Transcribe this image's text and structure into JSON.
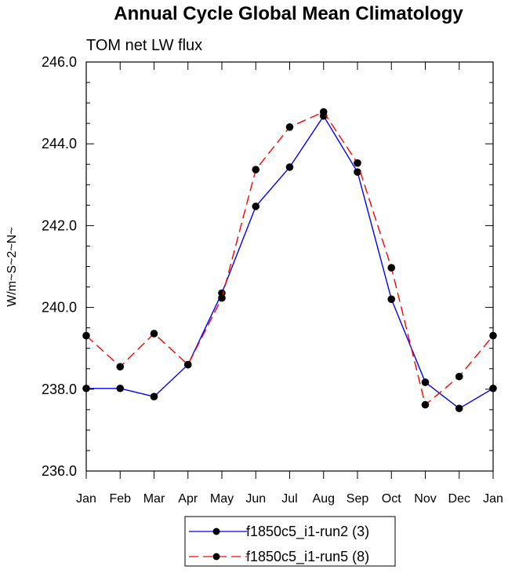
{
  "chart_data": {
    "type": "line",
    "title": "Annual Cycle Global Mean Climatology",
    "subtitle": "TOM net LW flux",
    "ylabel": "W/m~S~2~N~",
    "xlabel": "",
    "categories": [
      "Jan",
      "Feb",
      "Mar",
      "Apr",
      "May",
      "Jun",
      "Jul",
      "Aug",
      "Sep",
      "Oct",
      "Nov",
      "Dec",
      "Jan"
    ],
    "ylim": [
      236.0,
      246.0
    ],
    "yticks": [
      "236.0",
      "238.0",
      "240.0",
      "242.0",
      "244.0",
      "246.0"
    ],
    "grid": false,
    "legend_position": "bottom-center",
    "series": [
      {
        "name": "f1850c5_i1-run2 (3)",
        "color": "#0000ff",
        "line_style": "solid",
        "marker": "filled-circle",
        "values": [
          238.02,
          238.02,
          237.82,
          238.6,
          240.35,
          242.47,
          243.43,
          244.68,
          243.31,
          240.2,
          238.17,
          237.53,
          238.02
        ]
      },
      {
        "name": "f1850c5_i1-run5 (8)",
        "color": "#ff0000",
        "line_style": "dashed",
        "marker": "filled-circle",
        "values": [
          239.31,
          238.55,
          239.36,
          238.6,
          240.23,
          243.37,
          244.41,
          244.78,
          243.53,
          240.97,
          237.62,
          238.31,
          239.31
        ]
      }
    ]
  }
}
